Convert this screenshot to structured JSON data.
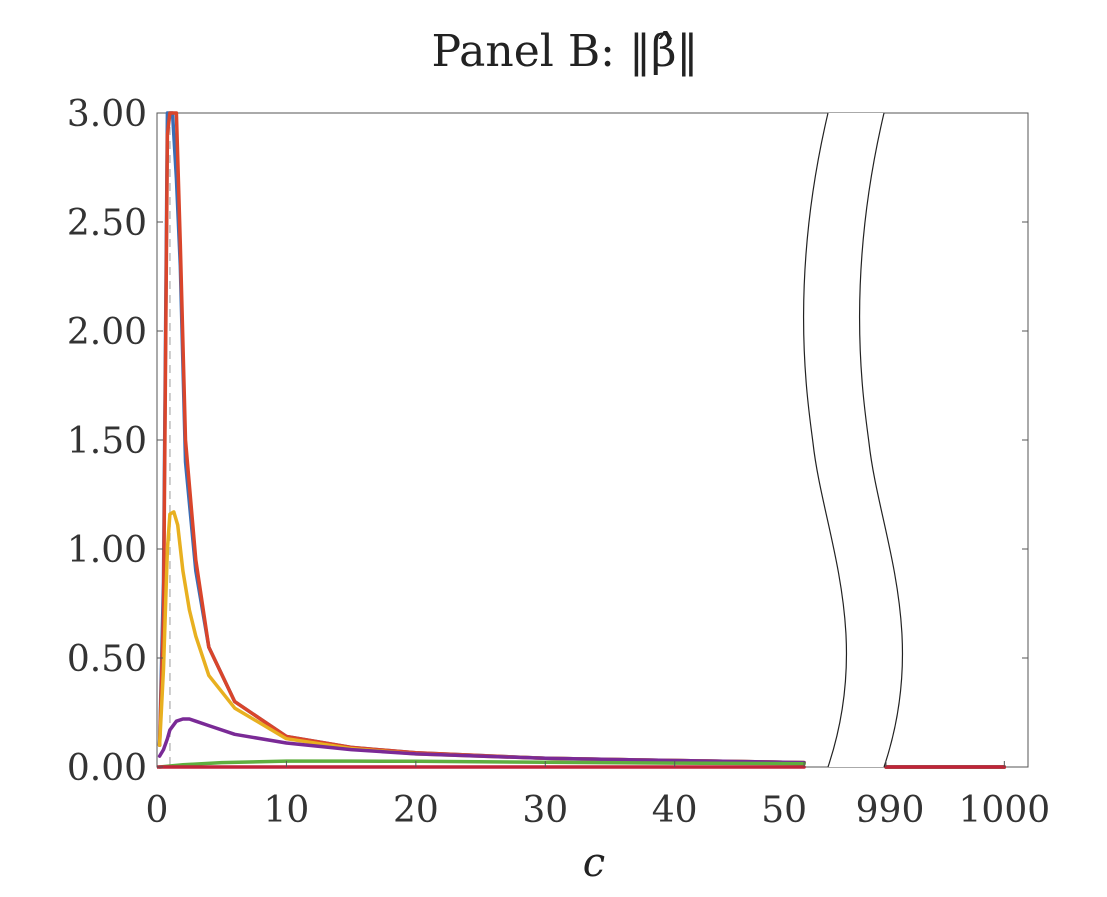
{
  "chart_data": {
    "type": "line",
    "title": "Panel B: ‖β̂‖",
    "xlabel": "c",
    "ylabel": "",
    "ylim": [
      0,
      3
    ],
    "y_ticks": [
      "0.00",
      "0.50",
      "1.00",
      "1.50",
      "2.00",
      "2.50",
      "3.00"
    ],
    "y_tick_values": [
      0,
      0.5,
      1,
      1.5,
      2,
      2.5,
      3
    ],
    "x_segments": [
      {
        "range": [
          0,
          52
        ],
        "ticks": [
          0,
          10,
          20,
          30,
          40,
          50
        ],
        "tick_labels": [
          "0",
          "10",
          "20",
          "30",
          "40",
          "50"
        ]
      },
      {
        "range": [
          990,
          1002
        ],
        "ticks": [
          990,
          1000
        ],
        "tick_labels": [
          "990",
          "1000"
        ]
      }
    ],
    "axis_break": true,
    "reference_line": {
      "x": 1,
      "style": "dashed",
      "color": "#bbbbbb"
    },
    "series": [
      {
        "color": "#3a6db5",
        "x": [
          0.2,
          0.5,
          0.8,
          1.0,
          1.2,
          1.5,
          1.8,
          2.2,
          3,
          4,
          6,
          10,
          15,
          20,
          30,
          40,
          50,
          990,
          1000
        ],
        "y": [
          0.1,
          0.85,
          3.0,
          3.0,
          3.0,
          2.7,
          2.3,
          1.4,
          0.9,
          0.55,
          0.3,
          0.14,
          0.09,
          0.065,
          0.04,
          0.03,
          0.02,
          0.0,
          0.0
        ]
      },
      {
        "color": "#d9452b",
        "x": [
          0.2,
          0.5,
          0.8,
          1.0,
          1.2,
          1.5,
          1.8,
          2.2,
          3,
          4,
          6,
          10,
          15,
          20,
          30,
          40,
          50,
          990,
          1000
        ],
        "y": [
          0.1,
          0.7,
          2.9,
          3.0,
          3.0,
          3.0,
          2.4,
          1.5,
          0.95,
          0.55,
          0.3,
          0.14,
          0.09,
          0.065,
          0.04,
          0.03,
          0.02,
          0.0,
          0.0
        ]
      },
      {
        "color": "#e8b020",
        "x": [
          0.2,
          0.5,
          0.8,
          1.0,
          1.3,
          1.6,
          2.0,
          2.5,
          3,
          4,
          6,
          10,
          15,
          20,
          30,
          40,
          50,
          990,
          1000
        ],
        "y": [
          0.1,
          0.45,
          1.0,
          1.16,
          1.17,
          1.11,
          0.9,
          0.72,
          0.6,
          0.42,
          0.27,
          0.13,
          0.085,
          0.06,
          0.04,
          0.03,
          0.02,
          0.0,
          0.0
        ]
      },
      {
        "color": "#7a2a96",
        "x": [
          0.2,
          0.5,
          0.8,
          1.0,
          1.5,
          2.0,
          2.5,
          3,
          4,
          6,
          10,
          15,
          20,
          30,
          40,
          50,
          990,
          1000
        ],
        "y": [
          0.05,
          0.08,
          0.13,
          0.17,
          0.21,
          0.22,
          0.22,
          0.21,
          0.19,
          0.15,
          0.11,
          0.08,
          0.06,
          0.04,
          0.03,
          0.02,
          0.0,
          0.0
        ]
      },
      {
        "color": "#5fae3e",
        "x": [
          0.2,
          2,
          5,
          10,
          15,
          20,
          30,
          40,
          50,
          990,
          1000
        ],
        "y": [
          0.0,
          0.01,
          0.02,
          0.027,
          0.027,
          0.026,
          0.022,
          0.018,
          0.015,
          0.0,
          0.0
        ]
      },
      {
        "color": "#c0243a",
        "x": [
          0,
          10,
          20,
          30,
          40,
          50,
          990,
          1000
        ],
        "y": [
          0.0,
          0.0,
          0.0,
          0.0,
          0.0,
          0.0,
          0.0,
          0.0
        ]
      }
    ]
  }
}
